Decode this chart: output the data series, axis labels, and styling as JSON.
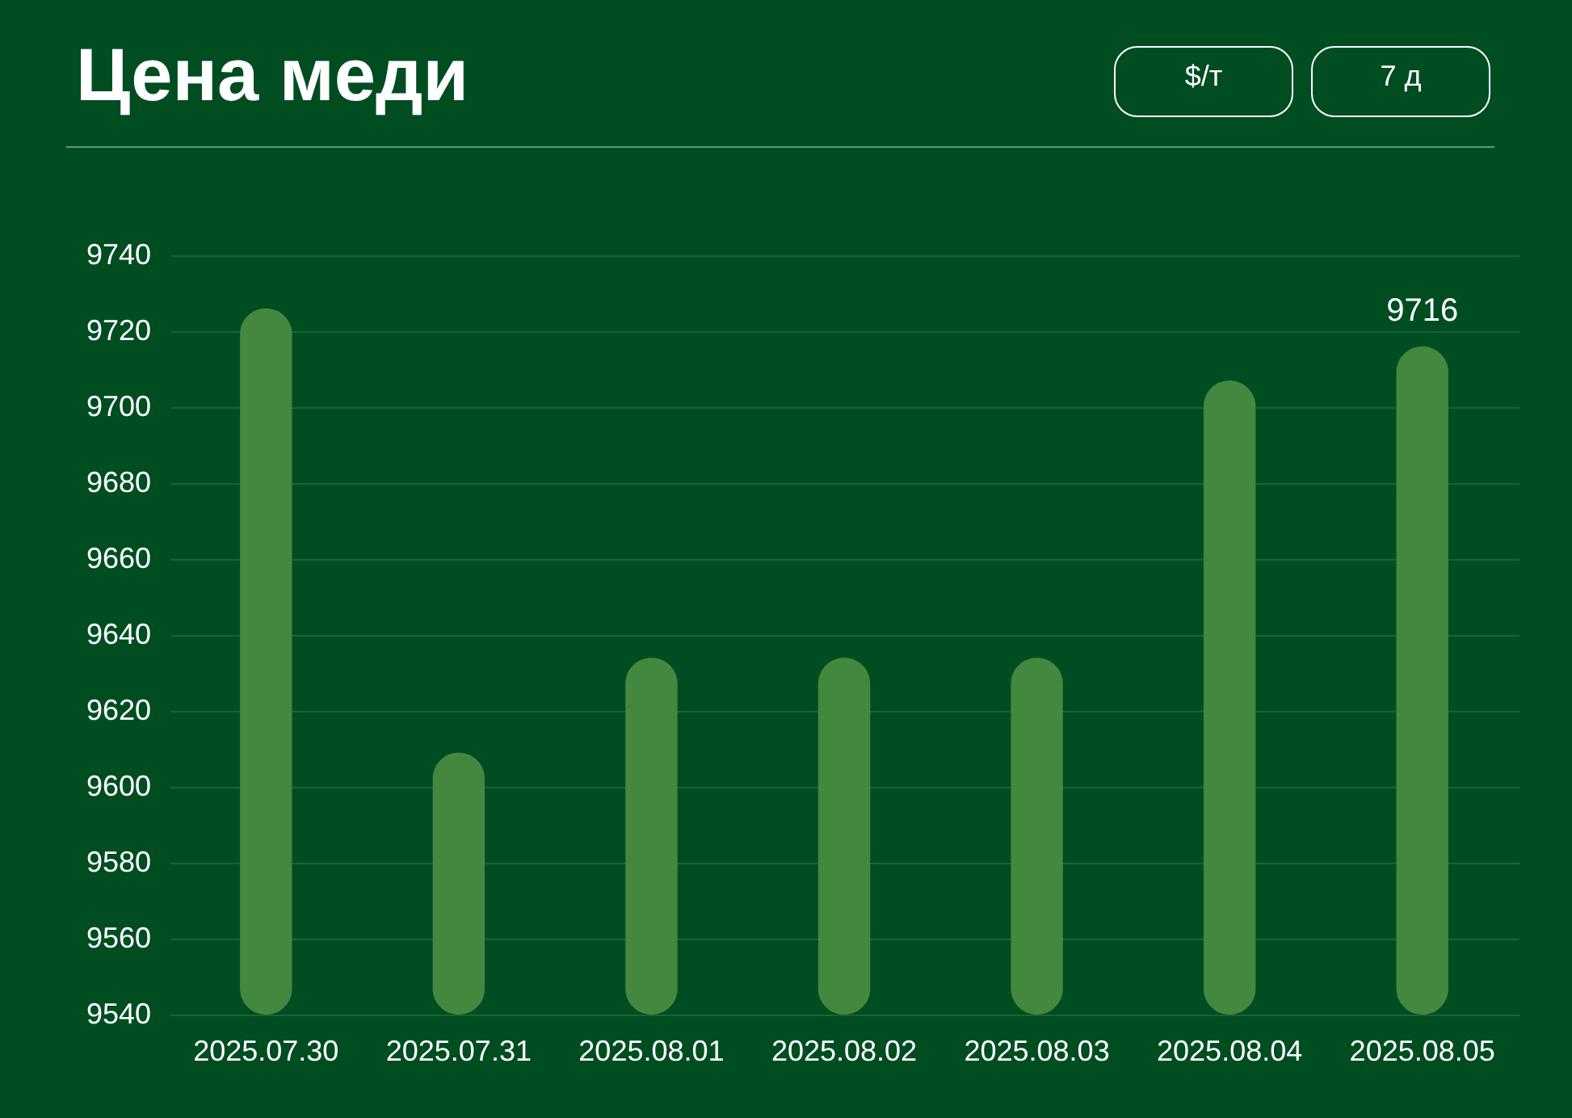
{
  "chart_data": {
    "type": "bar",
    "title": "Цена меди",
    "annotations": [
      "$/т",
      "7 д"
    ],
    "categories": [
      "2025.07.30",
      "2025.07.31",
      "2025.08.01",
      "2025.08.02",
      "2025.08.03",
      "2025.08.04",
      "2025.08.05"
    ],
    "values": [
      9726,
      9609,
      9634,
      9634,
      9634,
      9707,
      9716
    ],
    "value_labels": [
      null,
      null,
      null,
      null,
      null,
      null,
      "9716"
    ],
    "color": "#43883e",
    "ylim": [
      9540,
      9740
    ],
    "yticks": [
      9540,
      9560,
      9580,
      9600,
      9620,
      9640,
      9660,
      9680,
      9700,
      9720,
      9740
    ],
    "grid": "y"
  }
}
